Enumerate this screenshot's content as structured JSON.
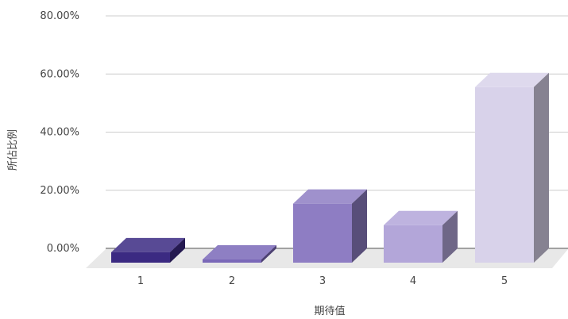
{
  "chart_data": {
    "type": "bar",
    "three_d": true,
    "categories": [
      "1",
      "2",
      "3",
      "4",
      "5"
    ],
    "values": [
      3.6,
      0.9,
      20.3,
      12.9,
      60.4
    ],
    "xlabel": "期待值",
    "ylabel": "所佔比例",
    "ylim": [
      0,
      80
    ],
    "yticks": [
      "0.00%",
      "20.00%",
      "40.00%",
      "60.00%",
      "80.00%"
    ],
    "grid": true,
    "legend": "none",
    "colors": {
      "bars": [
        "#3b2a82",
        "#7a68b8",
        "#8e7dc3",
        "#b3a6d9",
        "#d8d2ea"
      ],
      "floor": "#e8e8e8",
      "gridline": "#cccccc",
      "baseline": "#444444"
    }
  }
}
